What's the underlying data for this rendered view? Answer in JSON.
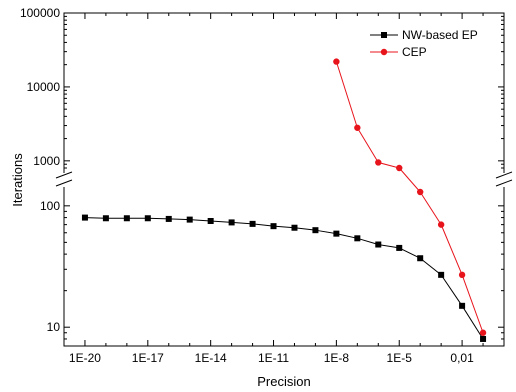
{
  "chart_data": {
    "type": "line",
    "title": "",
    "xlabel": "Precision",
    "ylabel": "Iterations",
    "x_scale": "log",
    "y_scale": "log-broken",
    "xlim": [
      1e-21,
      1
    ],
    "x_ticks": [
      1e-20,
      1e-17,
      1e-14,
      1e-11,
      1e-08,
      1e-05,
      0.01
    ],
    "x_tick_labels": [
      "1E-20",
      "1E-17",
      "1E-14",
      "1E-11",
      "1E-8",
      "1E-5",
      "0,01"
    ],
    "y_segments": [
      {
        "range": [
          7,
          130
        ],
        "ticks": [
          10,
          100
        ],
        "tick_labels": [
          "10",
          "100"
        ]
      },
      {
        "range": [
          800,
          100000
        ],
        "ticks": [
          1000,
          10000,
          100000
        ],
        "tick_labels": [
          "1000",
          "10000",
          "100000"
        ]
      }
    ],
    "legend_position": "top-right",
    "series": [
      {
        "name": "NW-based EP",
        "color": "#000000",
        "marker": "square",
        "x": [
          1e-20,
          1e-19,
          1e-18,
          1e-17,
          1e-16,
          1e-15,
          1e-14,
          1e-13,
          1e-12,
          1e-11,
          1e-10,
          1e-09,
          1e-08,
          1e-07,
          1e-06,
          1e-05,
          0.0001,
          0.001,
          0.01,
          0.1
        ],
        "y": [
          80,
          79,
          79,
          79,
          78,
          77,
          75,
          73,
          71,
          68,
          66,
          63,
          59,
          54,
          48,
          45,
          37,
          27,
          15,
          8
        ]
      },
      {
        "name": "CEP",
        "color": "#e8141c",
        "marker": "circle",
        "x": [
          1e-08,
          1e-07,
          1e-06,
          1e-05,
          0.0001,
          0.001,
          0.01,
          0.1
        ],
        "y": [
          22000,
          2800,
          950,
          800,
          130,
          70,
          27,
          9
        ]
      }
    ]
  }
}
